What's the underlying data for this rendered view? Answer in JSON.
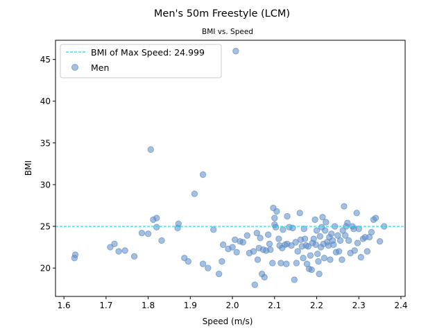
{
  "chart_data": {
    "type": "scatter",
    "title": "Men's 50m Freestyle (LCM)",
    "subtitle": "BMI vs. Speed",
    "xlabel": "Speed (m/s)",
    "ylabel": "BMI",
    "xlim": [
      1.58,
      2.41
    ],
    "ylim": [
      16.6,
      47.3
    ],
    "xticks": [
      1.6,
      1.7,
      1.8,
      1.9,
      2.0,
      2.1,
      2.2,
      2.3,
      2.4
    ],
    "yticks": [
      20,
      25,
      30,
      35,
      40,
      45
    ],
    "grid": false,
    "legend_position": "top-left",
    "reference_line": {
      "label": "BMI of Max Speed: 24.999",
      "value": 24.999,
      "color": "#00e5ee"
    },
    "series": [
      {
        "name": "Men",
        "color": "#5b8bc4",
        "points": [
          [
            1.625,
            21.2
          ],
          [
            1.627,
            21.6
          ],
          [
            1.71,
            22.5
          ],
          [
            1.72,
            22.9
          ],
          [
            1.73,
            22.0
          ],
          [
            1.745,
            22.1
          ],
          [
            1.767,
            21.4
          ],
          [
            1.785,
            24.2
          ],
          [
            1.8,
            24.1
          ],
          [
            1.806,
            34.2
          ],
          [
            1.812,
            25.8
          ],
          [
            1.82,
            26.0
          ],
          [
            1.82,
            24.9
          ],
          [
            1.832,
            23.3
          ],
          [
            1.87,
            24.8
          ],
          [
            1.872,
            25.3
          ],
          [
            1.886,
            21.2
          ],
          [
            1.895,
            20.8
          ],
          [
            1.91,
            28.9
          ],
          [
            1.93,
            31.2
          ],
          [
            1.93,
            20.5
          ],
          [
            1.942,
            20.0
          ],
          [
            1.955,
            24.6
          ],
          [
            1.968,
            19.3
          ],
          [
            1.975,
            20.8
          ],
          [
            1.978,
            22.8
          ],
          [
            1.99,
            22.3
          ],
          [
            2.0,
            22.5
          ],
          [
            2.006,
            23.4
          ],
          [
            2.008,
            46.0
          ],
          [
            2.01,
            21.9
          ],
          [
            2.018,
            23.2
          ],
          [
            2.025,
            23.1
          ],
          [
            2.035,
            23.9
          ],
          [
            2.04,
            21.8
          ],
          [
            2.05,
            22.0
          ],
          [
            2.053,
            18.0
          ],
          [
            2.058,
            24.2
          ],
          [
            2.06,
            21.0
          ],
          [
            2.063,
            22.4
          ],
          [
            2.066,
            23.6
          ],
          [
            2.07,
            19.3
          ],
          [
            2.073,
            22.2
          ],
          [
            2.076,
            18.9
          ],
          [
            2.08,
            22.1
          ],
          [
            2.085,
            24.0
          ],
          [
            2.088,
            22.9
          ],
          [
            2.09,
            22.2
          ],
          [
            2.095,
            20.6
          ],
          [
            2.097,
            27.2
          ],
          [
            2.1,
            26.0
          ],
          [
            2.1,
            25.2
          ],
          [
            2.103,
            24.9
          ],
          [
            2.105,
            26.8
          ],
          [
            2.11,
            23.5
          ],
          [
            2.112,
            22.7
          ],
          [
            2.115,
            20.6
          ],
          [
            2.118,
            22.4
          ],
          [
            2.12,
            24.6
          ],
          [
            2.125,
            22.8
          ],
          [
            2.128,
            20.5
          ],
          [
            2.13,
            26.2
          ],
          [
            2.13,
            22.9
          ],
          [
            2.135,
            24.9
          ],
          [
            2.14,
            22.7
          ],
          [
            2.143,
            24.8
          ],
          [
            2.147,
            18.6
          ],
          [
            2.15,
            23.1
          ],
          [
            2.152,
            20.6
          ],
          [
            2.155,
            22.0
          ],
          [
            2.16,
            26.6
          ],
          [
            2.162,
            23.4
          ],
          [
            2.165,
            22.6
          ],
          [
            2.168,
            21.2
          ],
          [
            2.17,
            24.7
          ],
          [
            2.172,
            23.5
          ],
          [
            2.175,
            22.7
          ],
          [
            2.177,
            20.5
          ],
          [
            2.18,
            22.6
          ],
          [
            2.182,
            19.9
          ],
          [
            2.185,
            21.5
          ],
          [
            2.188,
            19.8
          ],
          [
            2.19,
            23.0
          ],
          [
            2.193,
            23.5
          ],
          [
            2.196,
            25.8
          ],
          [
            2.198,
            22.8
          ],
          [
            2.2,
            24.5
          ],
          [
            2.202,
            21.7
          ],
          [
            2.204,
            20.8
          ],
          [
            2.206,
            19.3
          ],
          [
            2.208,
            23.8
          ],
          [
            2.21,
            22.5
          ],
          [
            2.212,
            24.9
          ],
          [
            2.214,
            26.1
          ],
          [
            2.216,
            22.9
          ],
          [
            2.218,
            21.2
          ],
          [
            2.22,
            24.5
          ],
          [
            2.222,
            25.5
          ],
          [
            2.225,
            23.1
          ],
          [
            2.228,
            22.7
          ],
          [
            2.23,
            23.7
          ],
          [
            2.232,
            21.0
          ],
          [
            2.235,
            24.1
          ],
          [
            2.238,
            23.3
          ],
          [
            2.24,
            22.8
          ],
          [
            2.243,
            25.0
          ],
          [
            2.246,
            21.9
          ],
          [
            2.25,
            23.9
          ],
          [
            2.253,
            22.0
          ],
          [
            2.256,
            23.3
          ],
          [
            2.26,
            21.0
          ],
          [
            2.262,
            24.5
          ],
          [
            2.265,
            27.4
          ],
          [
            2.268,
            23.9
          ],
          [
            2.27,
            25.0
          ],
          [
            2.273,
            25.4
          ],
          [
            2.276,
            23.3
          ],
          [
            2.28,
            21.8
          ],
          [
            2.285,
            25.0
          ],
          [
            2.288,
            24.7
          ],
          [
            2.29,
            22.1
          ],
          [
            2.295,
            26.6
          ],
          [
            2.297,
            23.0
          ],
          [
            2.3,
            24.7
          ],
          [
            2.305,
            21.3
          ],
          [
            2.31,
            23.5
          ],
          [
            2.315,
            23.7
          ],
          [
            2.32,
            22.0
          ],
          [
            2.325,
            23.7
          ],
          [
            2.33,
            24.3
          ],
          [
            2.335,
            25.8
          ],
          [
            2.34,
            26.0
          ],
          [
            2.35,
            23.2
          ],
          [
            2.36,
            25.0
          ]
        ]
      }
    ]
  }
}
